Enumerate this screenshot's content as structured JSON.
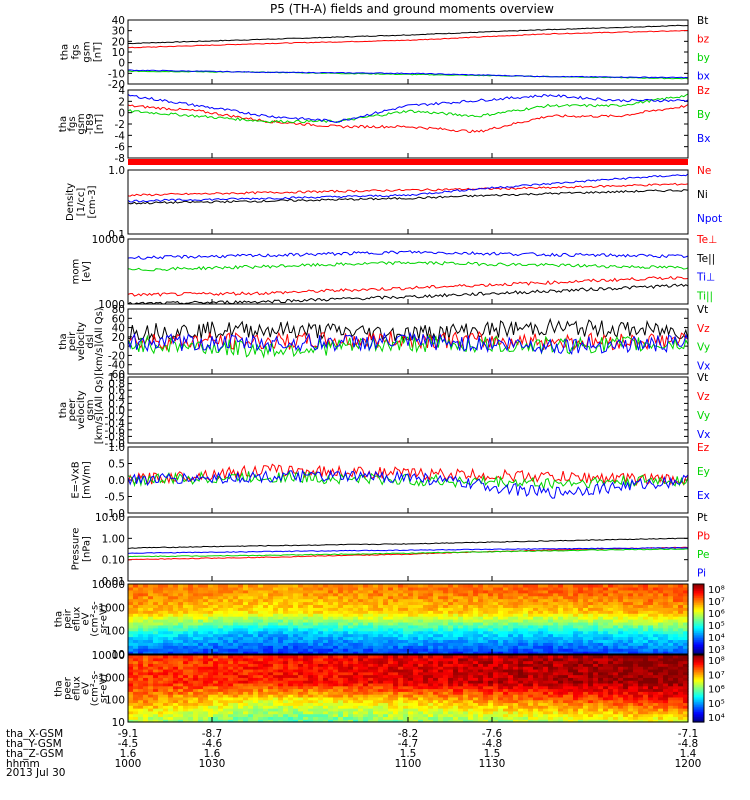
{
  "title": "P5 (TH-A) fields and ground moments overview",
  "date": "2013 Jul 30",
  "footer": {
    "rows": [
      {
        "label": "tha_X-GSM",
        "values": [
          "-9.1",
          "-8.7",
          "-8.2",
          "-7.6",
          "-7.1"
        ]
      },
      {
        "label": "tha_Y-GSM",
        "values": [
          "-4.5",
          "-4.6",
          "-4.7",
          "-4.8",
          "-4.8"
        ]
      },
      {
        "label": "tha_Z-GSM",
        "values": [
          "1.6",
          "1.6",
          "1.5",
          "1.5",
          "1.4"
        ]
      },
      {
        "label": "hhmm",
        "values": [
          "1000",
          "1030",
          "1100",
          "1130",
          "1200"
        ]
      }
    ]
  },
  "colors": {
    "black": "#000000",
    "red": "#ff0000",
    "green": "#00d400",
    "blue": "#0000ff"
  },
  "chart_data": [
    {
      "type": "line",
      "ylabel": [
        "tha",
        "fgs",
        "gsm",
        "[nT]"
      ],
      "ylim": [
        -20,
        40
      ],
      "yticks": [
        "40",
        "30",
        "20",
        "10",
        "0",
        "-10",
        "-20"
      ],
      "legend": [
        {
          "label": "Bt",
          "color": "black"
        },
        {
          "label": "bz",
          "color": "red"
        },
        {
          "label": "by",
          "color": "green"
        },
        {
          "label": "bx",
          "color": "blue"
        }
      ],
      "series": [
        {
          "name": "Bt",
          "color": "black",
          "x": [
            1000,
            1030,
            1100,
            1130,
            1200
          ],
          "values": [
            18,
            22,
            26,
            31,
            35
          ]
        },
        {
          "name": "bz",
          "color": "red",
          "x": [
            1000,
            1030,
            1100,
            1130,
            1200
          ],
          "values": [
            14,
            18,
            21,
            27,
            30
          ]
        },
        {
          "name": "by",
          "color": "green",
          "x": [
            1000,
            1030,
            1100,
            1130,
            1200
          ],
          "values": [
            -8,
            -9,
            -11,
            -13,
            -15
          ]
        },
        {
          "name": "bx",
          "color": "blue",
          "x": [
            1000,
            1030,
            1100,
            1130,
            1200
          ],
          "values": [
            -7,
            -9,
            -10,
            -13,
            -14
          ]
        }
      ]
    },
    {
      "type": "line",
      "ylabel": [
        "tha",
        "fgs",
        "gsm",
        "-T89",
        "[nT]"
      ],
      "ylim": [
        -9,
        4
      ],
      "yticks": [
        "4",
        "2",
        "0",
        "-2",
        "-4",
        "-6",
        "-8"
      ],
      "legend": [
        {
          "label": "Bz",
          "color": "red"
        },
        {
          "label": "By",
          "color": "green"
        },
        {
          "label": "Bx",
          "color": "blue"
        }
      ],
      "series": [
        {
          "name": "Bz",
          "color": "red",
          "x": [
            1000,
            1015,
            1030,
            1045,
            1100,
            1115,
            1130,
            1145,
            1200
          ],
          "values": [
            1,
            0,
            -2,
            -3,
            -3,
            -4,
            -1,
            -1,
            1
          ]
        },
        {
          "name": "By",
          "color": "green",
          "x": [
            1000,
            1015,
            1030,
            1045,
            1100,
            1115,
            1130,
            1145,
            1200
          ],
          "values": [
            0,
            -1,
            -2,
            -2,
            0,
            -1,
            1,
            1,
            3
          ]
        },
        {
          "name": "Bx",
          "color": "blue",
          "x": [
            1000,
            1015,
            1030,
            1045,
            1100,
            1115,
            1130,
            1145,
            1200
          ],
          "values": [
            3,
            1,
            -1,
            -2,
            1,
            2,
            3,
            2,
            2
          ]
        }
      ]
    },
    {
      "type": "line",
      "ylabel": [
        "Density",
        "[1/cc]",
        "[cm-3]"
      ],
      "scale": "log",
      "ylim": [
        0.1,
        1.2
      ],
      "yticks": [
        "1.0",
        "0.1"
      ],
      "legend": [
        {
          "label": "Ne",
          "color": "red"
        },
        {
          "label": "Ni",
          "color": "black"
        },
        {
          "label": "Npot",
          "color": "blue"
        }
      ],
      "series": [
        {
          "name": "Ne",
          "color": "red",
          "x": [
            1000,
            1030,
            1100,
            1130,
            1200
          ],
          "values": [
            0.45,
            0.5,
            0.55,
            0.6,
            0.7
          ]
        },
        {
          "name": "Ni",
          "color": "black",
          "x": [
            1000,
            1030,
            1100,
            1130,
            1200
          ],
          "values": [
            0.33,
            0.36,
            0.4,
            0.48,
            0.55
          ]
        },
        {
          "name": "Npot",
          "color": "blue",
          "x": [
            1000,
            1030,
            1100,
            1130,
            1200
          ],
          "values": [
            0.36,
            0.4,
            0.45,
            0.7,
            1.0
          ]
        }
      ]
    },
    {
      "type": "line",
      "ylabel": [
        "mom",
        "[eV]"
      ],
      "scale": "log",
      "ylim": [
        1000,
        11000
      ],
      "yticks": [
        "10000",
        "1000"
      ],
      "legend": [
        {
          "label": "Te⊥",
          "color": "red"
        },
        {
          "label": "Te||",
          "color": "black"
        },
        {
          "label": "Ti⊥",
          "color": "blue"
        },
        {
          "label": "Ti||",
          "color": "green"
        }
      ],
      "series": [
        {
          "name": "Te⊥",
          "color": "red",
          "x": [
            1000,
            1030,
            1100,
            1130,
            1200
          ],
          "values": [
            1400,
            1500,
            1800,
            2200,
            2700
          ]
        },
        {
          "name": "Te||",
          "color": "black",
          "x": [
            1000,
            1030,
            1100,
            1130,
            1200
          ],
          "values": [
            1000,
            1100,
            1300,
            1600,
            2000
          ]
        },
        {
          "name": "Ti⊥",
          "color": "blue",
          "x": [
            1000,
            1030,
            1100,
            1130,
            1200
          ],
          "values": [
            5500,
            6000,
            6800,
            6200,
            5800
          ]
        },
        {
          "name": "Ti||",
          "color": "green",
          "x": [
            1000,
            1030,
            1100,
            1130,
            1200
          ],
          "values": [
            3500,
            4000,
            4600,
            4200,
            3800
          ]
        }
      ]
    },
    {
      "type": "line",
      "ylabel": [
        "tha",
        "peir",
        "velocity",
        "dsl",
        "[km/s](All Qs)"
      ],
      "ylim": [
        -80,
        80
      ],
      "yticks": [
        "80",
        "60",
        "40",
        "20",
        "0",
        "-20",
        "-40",
        "-60"
      ],
      "legend": [
        {
          "label": "Vt",
          "color": "black"
        },
        {
          "label": "Vz",
          "color": "red"
        },
        {
          "label": "Vy",
          "color": "green"
        },
        {
          "label": "Vx",
          "color": "blue"
        }
      ],
      "series": [
        {
          "name": "Vt",
          "color": "black",
          "x": [
            1000,
            1030,
            1100,
            1130,
            1200
          ],
          "values": [
            25,
            30,
            20,
            35,
            25
          ]
        },
        {
          "name": "Vz",
          "color": "red",
          "x": [
            1000,
            1030,
            1100,
            1130,
            1200
          ],
          "values": [
            2,
            0,
            5,
            0,
            2
          ]
        },
        {
          "name": "Vy",
          "color": "green",
          "x": [
            1000,
            1030,
            1100,
            1130,
            1200
          ],
          "values": [
            -5,
            -20,
            -5,
            -10,
            -5
          ]
        },
        {
          "name": "Vx",
          "color": "blue",
          "x": [
            1000,
            1030,
            1100,
            1130,
            1200
          ],
          "values": [
            -2,
            -5,
            0,
            -10,
            -5
          ]
        }
      ]
    },
    {
      "type": "line",
      "ylabel": [
        "tha",
        "peer",
        "velocity",
        "gsm",
        "[km/s](All Qs)"
      ],
      "ylim": [
        -1,
        1
      ],
      "yticks": [
        "1.0",
        "0.8",
        "0.6",
        "0.4",
        "0.2",
        "0.0",
        "-0.2",
        "-0.4",
        "-0.6",
        "-0.8",
        "-1.0"
      ],
      "legend": [
        {
          "label": "Vt",
          "color": "black"
        },
        {
          "label": "Vz",
          "color": "red"
        },
        {
          "label": "Vy",
          "color": "green"
        },
        {
          "label": "Vx",
          "color": "blue"
        }
      ],
      "series": []
    },
    {
      "type": "line",
      "ylabel": [
        "E=-VxB",
        "[mV/m]"
      ],
      "ylim": [
        -1,
        1
      ],
      "yticks": [
        "1.0",
        "0.5",
        "0.0",
        "-0.5",
        "-1.0"
      ],
      "legend": [
        {
          "label": "Ez",
          "color": "red"
        },
        {
          "label": "Ey",
          "color": "green"
        },
        {
          "label": "Ex",
          "color": "blue"
        }
      ],
      "series": [
        {
          "name": "Ez",
          "color": "red",
          "x": [
            1000,
            1030,
            1100,
            1130,
            1200
          ],
          "values": [
            0.0,
            0.3,
            0.2,
            0.1,
            0.0
          ]
        },
        {
          "name": "Ey",
          "color": "green",
          "x": [
            1000,
            1030,
            1100,
            1130,
            1200
          ],
          "values": [
            0.0,
            0.1,
            0.0,
            -0.1,
            0.0
          ]
        },
        {
          "name": "Ex",
          "color": "blue",
          "x": [
            1000,
            1030,
            1100,
            1130,
            1200
          ],
          "values": [
            0.0,
            0.1,
            0.1,
            -0.4,
            0.0
          ]
        }
      ]
    },
    {
      "type": "line",
      "ylabel": [
        "Pressure",
        "[nPa]"
      ],
      "scale": "log",
      "ylim": [
        0.01,
        10
      ],
      "yticks": [
        "10.00",
        "1.00",
        "0.10",
        "0.01"
      ],
      "legend": [
        {
          "label": "Pt",
          "color": "black"
        },
        {
          "label": "Pb",
          "color": "red"
        },
        {
          "label": "Pe",
          "color": "green"
        },
        {
          "label": "Pi",
          "color": "blue"
        }
      ],
      "series": [
        {
          "name": "Pt",
          "color": "black",
          "x": [
            1000,
            1030,
            1100,
            1130,
            1200
          ],
          "values": [
            0.35,
            0.45,
            0.55,
            0.75,
            1.0
          ]
        },
        {
          "name": "Pb",
          "color": "red",
          "x": [
            1000,
            1030,
            1100,
            1130,
            1200
          ],
          "values": [
            0.1,
            0.13,
            0.18,
            0.28,
            0.38
          ]
        },
        {
          "name": "Pe",
          "color": "green",
          "x": [
            1000,
            1030,
            1100,
            1130,
            1200
          ],
          "values": [
            0.14,
            0.16,
            0.2,
            0.26,
            0.32
          ]
        },
        {
          "name": "Pi",
          "color": "blue",
          "x": [
            1000,
            1030,
            1100,
            1130,
            1200
          ],
          "values": [
            0.2,
            0.24,
            0.28,
            0.32,
            0.36
          ]
        }
      ]
    },
    {
      "type": "heatmap",
      "ylabel": [
        "tha",
        "peir",
        "eflux",
        "eV",
        "(cm²-s-",
        "sr-eV)"
      ],
      "scale": "log",
      "ylim": [
        10,
        20000
      ],
      "yticks": [
        "10000",
        "1000",
        "100",
        "10"
      ],
      "colorbar": {
        "min_exp": 3,
        "max_exp": 8,
        "labels": [
          "10⁸",
          "10⁷",
          "10⁶",
          "10⁵",
          "10⁴",
          "10³"
        ]
      },
      "x": [
        1000,
        1030,
        1100,
        1130,
        1200
      ],
      "energy": [
        10,
        100,
        1000,
        10000
      ],
      "values": [
        [
          4.0,
          3.8,
          3.9,
          3.8,
          4.0
        ],
        [
          5.0,
          4.5,
          4.8,
          4.7,
          5.0
        ],
        [
          6.5,
          6.2,
          6.4,
          6.3,
          6.6
        ],
        [
          6.8,
          6.6,
          6.8,
          6.9,
          7.0
        ]
      ]
    },
    {
      "type": "heatmap",
      "ylabel": [
        "tha",
        "peer",
        "eflux",
        "eV",
        "(cm²-s-",
        "sr-eV)"
      ],
      "scale": "log",
      "ylim": [
        10,
        20000
      ],
      "yticks": [
        "10000",
        "1000",
        "100",
        "10"
      ],
      "colorbar": {
        "min_exp": 4,
        "max_exp": 8,
        "labels": [
          "10⁸",
          "10⁷",
          "10⁶",
          "10⁵",
          "10⁴"
        ]
      },
      "x": [
        1000,
        1030,
        1100,
        1130,
        1200
      ],
      "energy": [
        10,
        100,
        1000,
        10000
      ],
      "values": [
        [
          6.2,
          5.8,
          6.0,
          6.2,
          6.4
        ],
        [
          7.0,
          6.4,
          6.6,
          7.0,
          7.4
        ],
        [
          7.3,
          7.4,
          7.6,
          7.8,
          8.0
        ],
        [
          7.2,
          7.4,
          7.6,
          7.8,
          8.0
        ]
      ]
    }
  ]
}
